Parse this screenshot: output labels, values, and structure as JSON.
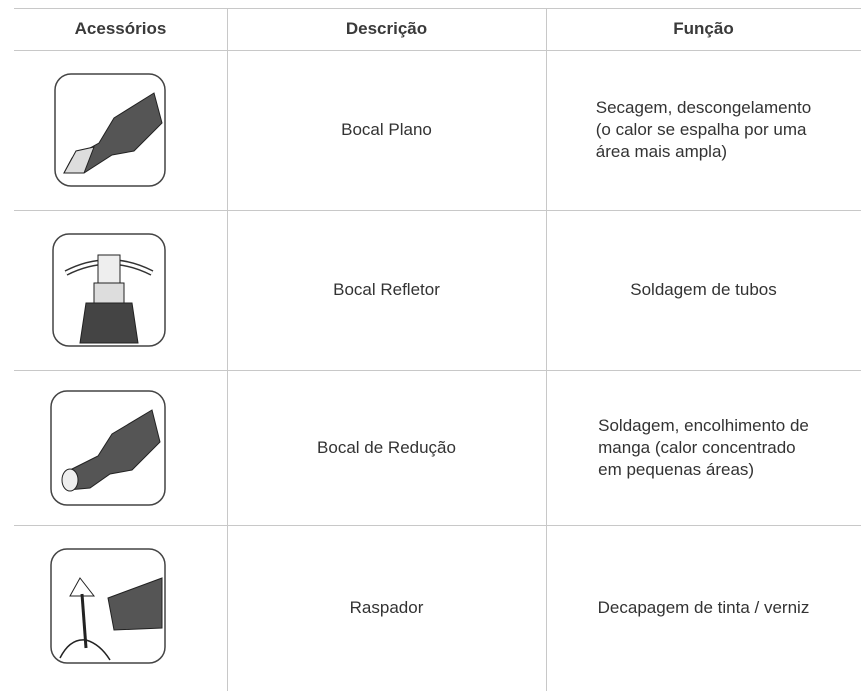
{
  "table": {
    "header": [
      "Acessórios",
      "Descrição",
      "Função"
    ],
    "rows": [
      {
        "descricao": "Bocal Plano",
        "funcao": [
          "Secagem, descongelamento",
          "(o calor se espalha por uma",
          "área mais ampla)"
        ]
      },
      {
        "descricao": "Bocal Refletor",
        "funcao": [
          "Soldagem de tubos"
        ]
      },
      {
        "descricao": "Bocal de Redução",
        "funcao": [
          "Soldagem, encolhimento de",
          "manga (calor concentrado",
          "em pequenas áreas)"
        ]
      },
      {
        "descricao": "Raspador",
        "funcao": [
          "Decapagem de tinta / verniz"
        ]
      }
    ]
  }
}
